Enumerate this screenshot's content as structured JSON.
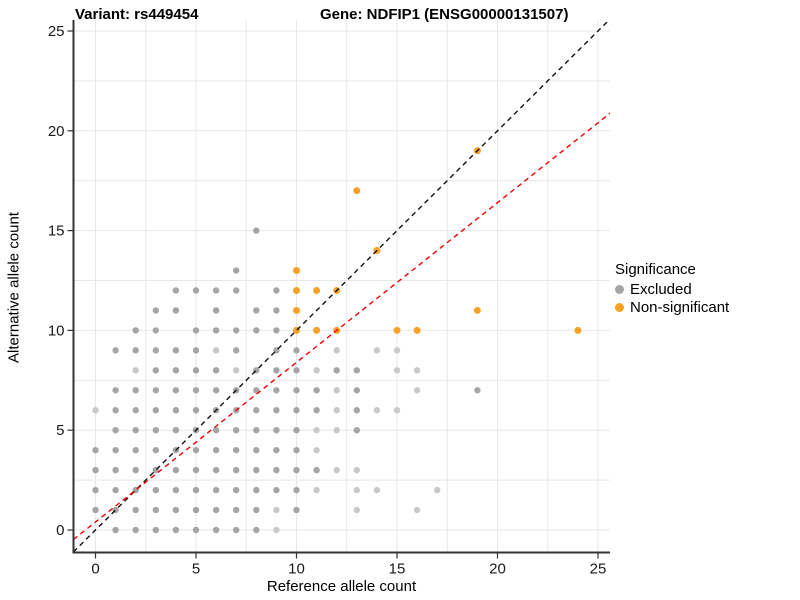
{
  "titles": {
    "variant": "Variant: rs449454",
    "gene": "Gene: NDFIP1 (ENSG00000131507)"
  },
  "chart_data": {
    "type": "scatter",
    "xlabel": "Reference allele count",
    "ylabel": "Alternative allele count",
    "xlim": [
      -1.1,
      25.6
    ],
    "ylim": [
      -1.1,
      25.6
    ],
    "ticks": [
      0,
      5,
      10,
      15,
      20,
      25
    ],
    "gridline_step": 2.5,
    "grid_on": true,
    "colors": {
      "excluded": "#a5a5a5",
      "excluded_light": "#c9c9c9",
      "non_significant": "#f9a125",
      "identity_line": "#111111",
      "ratio_line": "#f20000",
      "grid": "#e7e7e7",
      "axis": "#333333",
      "tick_text": "#1a1a1a"
    },
    "series": [
      {
        "name": "Excluded",
        "points": [
          [
            1,
            0
          ],
          [
            2,
            0
          ],
          [
            3,
            0
          ],
          [
            4,
            0
          ],
          [
            5,
            0
          ],
          [
            6,
            0
          ],
          [
            7,
            0
          ],
          [
            8,
            0
          ],
          [
            0,
            1
          ],
          [
            1,
            1
          ],
          [
            2,
            1
          ],
          [
            3,
            1
          ],
          [
            4,
            1
          ],
          [
            5,
            1
          ],
          [
            6,
            1
          ],
          [
            7,
            1
          ],
          [
            8,
            1
          ],
          [
            10,
            1
          ],
          [
            0,
            2
          ],
          [
            1,
            2
          ],
          [
            2,
            2
          ],
          [
            3,
            2
          ],
          [
            4,
            2
          ],
          [
            5,
            2
          ],
          [
            6,
            2
          ],
          [
            7,
            2
          ],
          [
            8,
            2
          ],
          [
            9,
            2
          ],
          [
            10,
            2
          ],
          [
            0,
            3
          ],
          [
            1,
            3
          ],
          [
            2,
            3
          ],
          [
            3,
            3
          ],
          [
            4,
            3
          ],
          [
            5,
            3
          ],
          [
            6,
            3
          ],
          [
            7,
            3
          ],
          [
            8,
            3
          ],
          [
            9,
            3
          ],
          [
            10,
            3
          ],
          [
            11,
            3
          ],
          [
            0,
            4
          ],
          [
            1,
            4
          ],
          [
            2,
            4
          ],
          [
            3,
            4
          ],
          [
            4,
            4
          ],
          [
            5,
            4
          ],
          [
            6,
            4
          ],
          [
            7,
            4
          ],
          [
            8,
            4
          ],
          [
            9,
            4
          ],
          [
            10,
            4
          ],
          [
            1,
            5
          ],
          [
            2,
            5
          ],
          [
            3,
            5
          ],
          [
            4,
            5
          ],
          [
            5,
            5
          ],
          [
            6,
            5
          ],
          [
            7,
            5
          ],
          [
            8,
            5
          ],
          [
            9,
            5
          ],
          [
            10,
            5
          ],
          [
            13,
            5
          ],
          [
            1,
            6
          ],
          [
            2,
            6
          ],
          [
            3,
            6
          ],
          [
            4,
            6
          ],
          [
            5,
            6
          ],
          [
            6,
            6
          ],
          [
            7,
            6
          ],
          [
            8,
            6
          ],
          [
            9,
            6
          ],
          [
            10,
            6
          ],
          [
            11,
            6
          ],
          [
            13,
            6
          ],
          [
            1,
            7
          ],
          [
            2,
            7
          ],
          [
            3,
            7
          ],
          [
            4,
            7
          ],
          [
            5,
            7
          ],
          [
            6,
            7
          ],
          [
            7,
            7
          ],
          [
            8,
            7
          ],
          [
            9,
            7
          ],
          [
            10,
            7
          ],
          [
            11,
            7
          ],
          [
            13,
            7
          ],
          [
            19,
            7
          ],
          [
            3,
            8
          ],
          [
            4,
            8
          ],
          [
            5,
            8
          ],
          [
            6,
            8
          ],
          [
            8,
            8
          ],
          [
            9,
            8
          ],
          [
            10,
            8
          ],
          [
            12,
            8
          ],
          [
            13,
            8
          ],
          [
            1,
            9
          ],
          [
            2,
            9
          ],
          [
            3,
            9
          ],
          [
            4,
            9
          ],
          [
            5,
            9
          ],
          [
            7,
            9
          ],
          [
            9,
            9
          ],
          [
            10,
            9
          ],
          [
            2,
            10
          ],
          [
            3,
            10
          ],
          [
            5,
            10
          ],
          [
            6,
            10
          ],
          [
            7,
            10
          ],
          [
            8,
            10
          ],
          [
            9,
            10
          ],
          [
            3,
            11
          ],
          [
            4,
            11
          ],
          [
            6,
            11
          ],
          [
            8,
            11
          ],
          [
            9,
            11
          ],
          [
            4,
            12
          ],
          [
            5,
            12
          ],
          [
            6,
            12
          ],
          [
            7,
            12
          ],
          [
            9,
            12
          ],
          [
            7,
            13
          ],
          [
            8,
            15
          ]
        ],
        "light_points": [
          [
            9,
            0
          ],
          [
            9,
            1
          ],
          [
            13,
            1
          ],
          [
            16,
            1
          ],
          [
            11,
            2
          ],
          [
            13,
            2
          ],
          [
            14,
            2
          ],
          [
            17,
            2
          ],
          [
            12,
            3
          ],
          [
            13,
            3
          ],
          [
            11,
            4
          ],
          [
            11,
            5
          ],
          [
            12,
            5
          ],
          [
            0,
            6
          ],
          [
            12,
            6
          ],
          [
            14,
            6
          ],
          [
            15,
            6
          ],
          [
            12,
            7
          ],
          [
            16,
            7
          ],
          [
            2,
            8
          ],
          [
            7,
            8
          ],
          [
            11,
            8
          ],
          [
            15,
            8
          ],
          [
            16,
            8
          ],
          [
            6,
            9
          ],
          [
            12,
            9
          ],
          [
            14,
            9
          ],
          [
            15,
            9
          ]
        ]
      },
      {
        "name": "Non-significant",
        "points": [
          [
            10,
            10
          ],
          [
            11,
            10
          ],
          [
            12,
            10
          ],
          [
            15,
            10
          ],
          [
            16,
            10
          ],
          [
            24,
            10
          ],
          [
            10,
            11
          ],
          [
            19,
            11
          ],
          [
            10,
            12
          ],
          [
            11,
            12
          ],
          [
            12,
            12
          ],
          [
            10,
            13
          ],
          [
            14,
            14
          ],
          [
            13,
            17
          ],
          [
            19,
            19
          ]
        ]
      }
    ],
    "lines": [
      {
        "name": "identity",
        "slope": 1.0,
        "intercept": 0.0,
        "dashed": true
      },
      {
        "name": "expected-ratio",
        "slope": 0.8,
        "intercept": 0.4,
        "dashed": true
      }
    ],
    "legend": {
      "title": "Significance",
      "position": "right",
      "items": [
        {
          "label": "Excluded",
          "color_key": "excluded"
        },
        {
          "label": "Non-significant",
          "color_key": "non_significant"
        }
      ]
    }
  }
}
